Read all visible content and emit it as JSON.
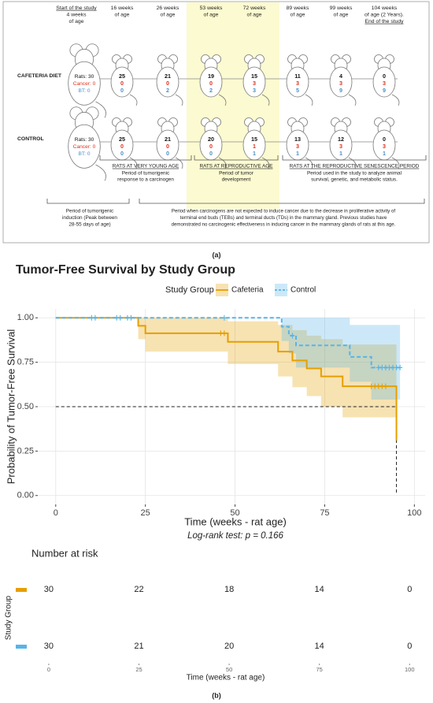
{
  "diagram": {
    "timepoints": [
      [
        "Start of the study",
        "4 weeks",
        "of age"
      ],
      [
        "16 weeks",
        "of age"
      ],
      [
        "26 weeks",
        "of age"
      ],
      [
        "53 weeks",
        "of age"
      ],
      [
        "72 weeks",
        "of age"
      ],
      [
        "89 weeks",
        "of age"
      ],
      [
        "99 weeks",
        "of age"
      ],
      [
        "104 weeks",
        "of age (2 Years).",
        "End of the study"
      ]
    ],
    "groups": [
      {
        "name": "CAFETERIA DIET",
        "start": [
          "Rats: 30",
          "Cancer: 0",
          "BT: 0"
        ],
        "counts": [
          [
            25,
            0,
            0
          ],
          [
            21,
            0,
            2
          ],
          [
            19,
            0,
            2
          ],
          [
            15,
            3,
            3
          ],
          [
            11,
            3,
            5
          ],
          [
            4,
            3,
            9
          ],
          [
            0,
            3,
            9
          ]
        ]
      },
      {
        "name": "CONTROL",
        "start": [
          "Rats: 30",
          "Cancer: 0",
          "BT: 0"
        ],
        "counts": [
          [
            25,
            0,
            0
          ],
          [
            21,
            0,
            0
          ],
          [
            20,
            0,
            0
          ],
          [
            15,
            1,
            1
          ],
          [
            13,
            3,
            1
          ],
          [
            12,
            3,
            1
          ],
          [
            0,
            3,
            1
          ]
        ]
      }
    ],
    "periods": [
      {
        "title": "RATS AT VERY YOUNG AGE",
        "lines": [
          "Period of tumorigenic",
          "response to a carcinogen"
        ]
      },
      {
        "title": "RATS AT REPRODUCTIVE AGE",
        "lines": [
          "Period of tumor",
          "development"
        ]
      },
      {
        "title": "RATS AT THE REPRODUCTIVE SENESCENCE PERIOD",
        "lines": [
          "Period used in the study to analyze animal",
          "survival, genetic, and metabolic status."
        ]
      }
    ],
    "notes": [
      {
        "lines": [
          "Period of tumorigenic",
          "induction (Peak between",
          "28-55 days of age)"
        ]
      },
      {
        "lines": [
          "Period when carcinogens are not expected to induce cancer due to the decrease in proliferative activity of",
          "terminal end buds (TEBs) and terminal ducts (TDs) in the mammary gland. Previous studies have",
          "demonstrated no carcinogenic effectiveness in inducing cancer in the mammary glands of rats at this age."
        ]
      }
    ],
    "panel_label": "(a)"
  },
  "chart_data": [
    {
      "type": "step",
      "title": "Tumor-Free Survival by Study Group",
      "legend_title": "Study Group",
      "legend_position": "top",
      "x_label": "Time (weeks - rat age)",
      "y_label": "Probability of Tumor-Free Survival",
      "annotation": "Log-rank test: p = 0.166",
      "xlim": [
        -5,
        103
      ],
      "ylim": [
        -0.05,
        1.05
      ],
      "xticks": [
        0,
        25,
        50,
        75,
        100
      ],
      "yticks": [
        {
          "value": 0,
          "label": "0.00"
        },
        {
          "value": 0.25,
          "label": "0.25"
        },
        {
          "value": 0.5,
          "label": "0.50"
        },
        {
          "value": 0.75,
          "label": "0.75"
        },
        {
          "value": 1,
          "label": "1.00"
        }
      ],
      "grid": true,
      "median": {
        "survival": 0.5,
        "time": 95
      },
      "series": [
        {
          "name": "Cafeteria",
          "color": "#E69F00",
          "dashed": false,
          "x": [
            0,
            23,
            25,
            48,
            62,
            66,
            70,
            74,
            80,
            95
          ],
          "values": [
            1,
            0.955,
            0.913,
            0.865,
            0.81,
            0.76,
            0.715,
            0.67,
            0.615,
            0.31
          ],
          "lower": [
            1,
            0.88,
            0.81,
            0.74,
            0.67,
            0.61,
            0.56,
            0.5,
            0.44,
            0.44
          ],
          "upper": [
            1,
            1,
            1,
            0.98,
            0.96,
            0.93,
            0.9,
            0.88,
            0.85,
            0.84
          ],
          "censored": [
            46,
            47,
            88,
            89,
            90,
            91,
            92
          ]
        },
        {
          "name": "Control",
          "color": "#56B4E9",
          "dashed": true,
          "x": [
            0,
            63,
            65,
            67,
            82,
            88,
            96
          ],
          "values": [
            1,
            0.95,
            0.9,
            0.845,
            0.78,
            0.72,
            0.72
          ],
          "lower": [
            1,
            0.87,
            0.8,
            0.72,
            0.64,
            0.54,
            0.54
          ],
          "upper": [
            1,
            1,
            1,
            1,
            0.96,
            0.96,
            0.96
          ],
          "censored": [
            10,
            11,
            17,
            18,
            20,
            21,
            47,
            66,
            90,
            91,
            92,
            93,
            94,
            95,
            96
          ]
        }
      ]
    },
    {
      "type": "risk_table",
      "title": "Number at risk",
      "y_label": "Study Group",
      "x_label": "Time (weeks - rat age)",
      "xlim": [
        -5,
        103
      ],
      "xticks": [
        0,
        25,
        50,
        75,
        100
      ],
      "rows": [
        {
          "color": "#E69F00",
          "values": [
            30,
            22,
            18,
            14,
            0
          ]
        },
        {
          "color": "#56B4E9",
          "values": [
            30,
            21,
            20,
            14,
            0
          ]
        }
      ],
      "panel_label": "(b)"
    }
  ]
}
